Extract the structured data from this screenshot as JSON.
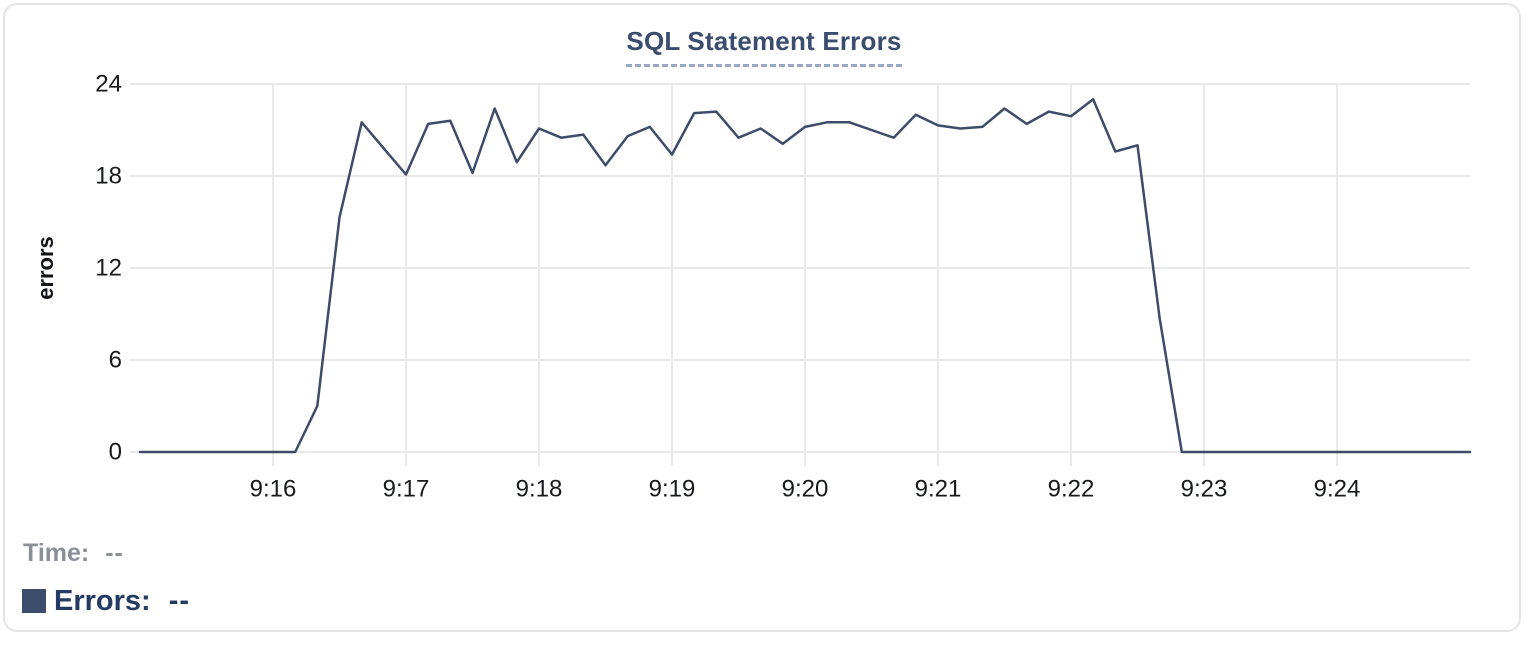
{
  "chart_data": {
    "type": "line",
    "title": "SQL Statement Errors",
    "xlabel": "",
    "ylabel": "errors",
    "ylim": [
      0,
      24
    ],
    "y_ticks": [
      0,
      6,
      12,
      18,
      24
    ],
    "x_ticks": [
      "9:16",
      "9:17",
      "9:18",
      "9:19",
      "9:20",
      "9:21",
      "9:22",
      "9:23",
      "9:24"
    ],
    "x_start": "9:15:00",
    "x_end": "9:25:00",
    "step_seconds": 10,
    "grid": true,
    "legend_position": "bottom-left",
    "line_color": "#3e4c6a",
    "grid_color": "#e9e9eb",
    "tick_label_color": "#17191c",
    "series": [
      {
        "name": "Errors",
        "values": [
          0,
          0,
          0,
          0,
          0,
          0,
          0,
          0,
          3,
          15.3,
          21.5,
          19.8,
          18.1,
          21.4,
          21.6,
          18.2,
          22.4,
          18.9,
          21.1,
          20.5,
          20.7,
          18.7,
          20.6,
          21.2,
          19.4,
          22.1,
          22.2,
          20.5,
          21.1,
          20.1,
          21.2,
          21.5,
          21.5,
          21,
          20.5,
          22,
          21.3,
          21.1,
          21.2,
          22.4,
          21.4,
          22.2,
          21.9,
          23,
          19.6,
          20,
          8.7,
          0,
          0,
          0,
          0,
          0,
          0,
          0,
          0,
          0,
          0,
          0,
          0,
          0,
          0
        ]
      }
    ]
  },
  "legend": {
    "rows": [
      {
        "label": "Time:",
        "value": "--"
      },
      {
        "label": "Errors:",
        "value": "--",
        "swatch_color": "#3c4d6e"
      }
    ]
  }
}
